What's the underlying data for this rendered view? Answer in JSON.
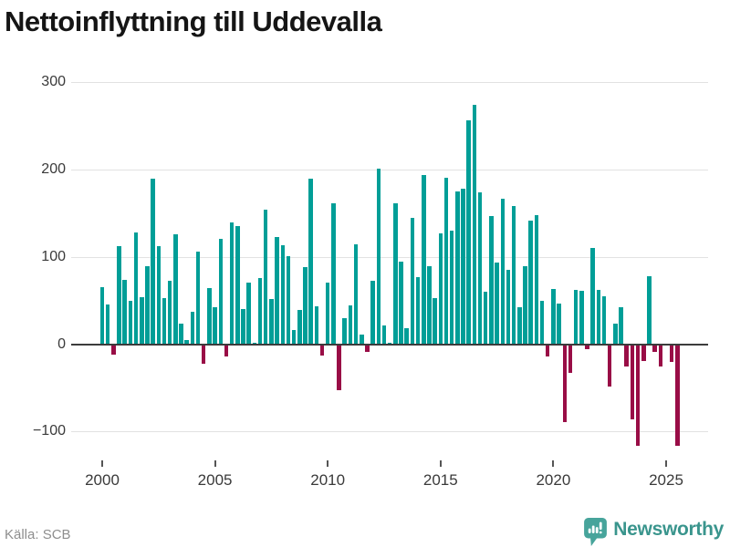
{
  "title": "Nettoinflyttning till Uddevalla",
  "source": "Källa: SCB",
  "brand": {
    "name": "Newsworthy",
    "icon": "newsworthy-badge-icon"
  },
  "colors": {
    "positive_bar": "#009e97",
    "negative_bar": "#990d46",
    "axis": "#3c3c3c",
    "grid": "#e2e2e2",
    "brand_teal": "#3a958d",
    "badge_teal": "#47a49b",
    "title_text": "#151515",
    "label_text": "#3a3a3a",
    "source_text": "#8e8e8e"
  },
  "chart_data": {
    "type": "bar",
    "title": "Nettoinflyttning till Uddevalla",
    "xlabel": "",
    "ylabel": "",
    "frequency": "quarterly",
    "x_range": [
      "2000 Q1",
      "2025 Q3"
    ],
    "ylim": [
      -130,
      310
    ],
    "grid": "horizontal",
    "legend": "none",
    "x_tick_labels": [
      "2000",
      "2005",
      "2010",
      "2015",
      "2020",
      "2025"
    ],
    "x_tick_indices": [
      0,
      20,
      40,
      60,
      80,
      100
    ],
    "y_ticks": [
      300,
      200,
      100,
      0,
      -100
    ],
    "y_tick_labels": [
      "300",
      "200",
      "100",
      "0",
      "−100"
    ],
    "series": [
      {
        "name": "Nettoinflyttning till Uddevalla",
        "values": [
          65,
          45,
          -11,
          112,
          74,
          50,
          128,
          54,
          89,
          189,
          112,
          53,
          73,
          126,
          24,
          5,
          37,
          106,
          -21,
          64,
          42,
          121,
          -13,
          139,
          135,
          40,
          70,
          2,
          76,
          154,
          52,
          123,
          113,
          101,
          16,
          39,
          88,
          189,
          43,
          -12,
          70,
          161,
          -52,
          30,
          44,
          114,
          11,
          -8,
          73,
          201,
          21,
          2,
          161,
          95,
          18,
          145,
          77,
          194,
          89,
          53,
          127,
          191,
          130,
          175,
          178,
          256,
          274,
          174,
          60,
          147,
          93,
          167,
          85,
          158,
          42,
          89,
          141,
          148,
          50,
          -13,
          63,
          46,
          -88,
          -32,
          62,
          61,
          -5,
          110,
          62,
          55,
          -47,
          24,
          42,
          -25,
          -85,
          -115,
          -18,
          78,
          -8,
          -25,
          0,
          -19,
          -115
        ]
      }
    ]
  }
}
